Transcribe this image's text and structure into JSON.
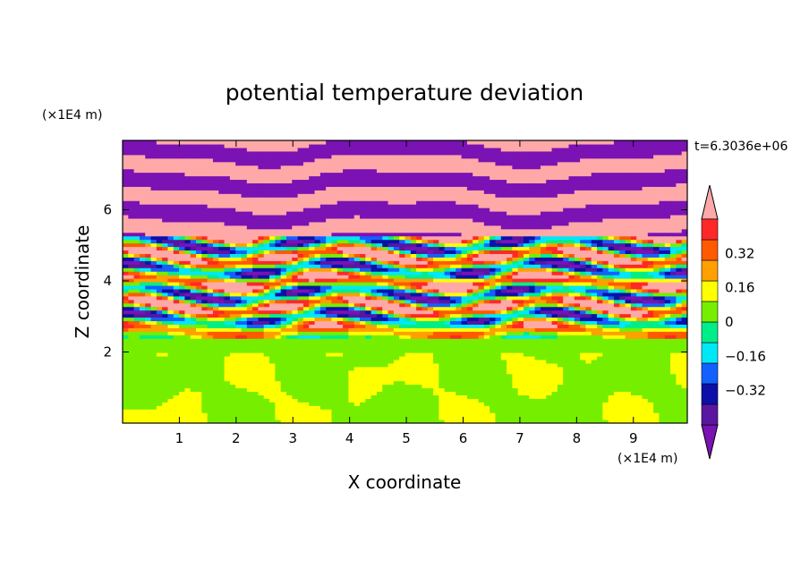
{
  "chart_data": {
    "type": "heatmap",
    "title": "potential temperature deviation",
    "xlabel": "X coordinate",
    "ylabel": "Z coordinate",
    "x_unit_label": "(×1E4 m)",
    "y_unit_label": "(×1E4 m)",
    "time_label": "t=6.3036e+06",
    "xlim": [
      0,
      9.95
    ],
    "ylim": [
      0,
      7.95
    ],
    "x_ticks": [
      1,
      2,
      3,
      4,
      5,
      6,
      7,
      8,
      9
    ],
    "y_ticks": [
      2,
      4,
      6
    ],
    "grid": false,
    "legend_position": "right",
    "colorbar": {
      "levels": [
        -0.48,
        -0.4,
        -0.32,
        -0.24,
        -0.16,
        -0.08,
        0,
        0.08,
        0.16,
        0.24,
        0.32,
        0.4,
        0.48
      ],
      "tick_labels": [
        "0.32",
        "0.16",
        "0",
        "−0.16",
        "−0.32"
      ],
      "tick_values": [
        0.32,
        0.16,
        0,
        -0.16,
        -0.32
      ],
      "colors": [
        "#7a12b4",
        "#5a16a0",
        "#0c10a8",
        "#1460ff",
        "#00e8f8",
        "#00ee88",
        "#76ee00",
        "#ffff00",
        "#ffa000",
        "#ff5a00",
        "#ff2828",
        "#ffa8a8"
      ],
      "extend": "both"
    },
    "regions": [
      {
        "zmin": 0.0,
        "zmax": 2.0,
        "description": "lower layer, values 0 to 0.08",
        "dominant_value": 0.04
      },
      {
        "zmin": 2.0,
        "zmax": 2.35,
        "description": "thin band near -0.04",
        "dominant_value": -0.04
      },
      {
        "zmin": 2.35,
        "zmax": 5.3,
        "description": "mixed layers -0.48 to 0.48",
        "dominant_value": 0.0
      },
      {
        "zmin": 5.3,
        "zmax": 7.95,
        "description": "alternating bands of >0.48 and <-0.48",
        "dominant_value": 0.0
      }
    ]
  }
}
